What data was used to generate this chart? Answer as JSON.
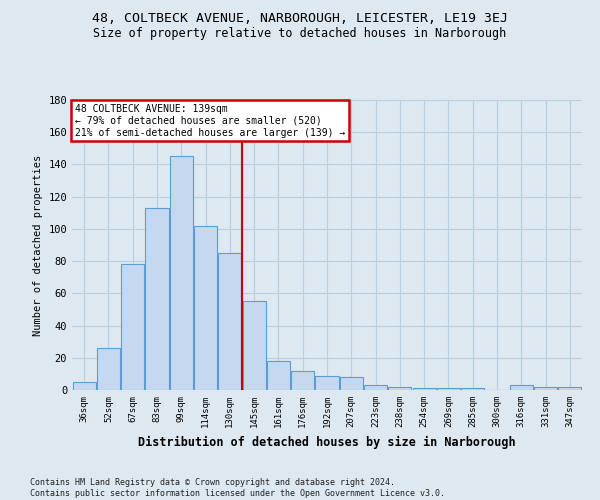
{
  "title_line1": "48, COLTBECK AVENUE, NARBOROUGH, LEICESTER, LE19 3EJ",
  "title_line2": "Size of property relative to detached houses in Narborough",
  "xlabel": "Distribution of detached houses by size in Narborough",
  "ylabel": "Number of detached properties",
  "categories": [
    "36sqm",
    "52sqm",
    "67sqm",
    "83sqm",
    "99sqm",
    "114sqm",
    "130sqm",
    "145sqm",
    "161sqm",
    "176sqm",
    "192sqm",
    "207sqm",
    "223sqm",
    "238sqm",
    "254sqm",
    "269sqm",
    "285sqm",
    "300sqm",
    "316sqm",
    "331sqm",
    "347sqm"
  ],
  "values": [
    5,
    26,
    78,
    113,
    145,
    102,
    85,
    55,
    18,
    12,
    9,
    8,
    3,
    2,
    1,
    1,
    1,
    0,
    3,
    2,
    2
  ],
  "bar_color": "#c5d8f0",
  "bar_edge_color": "#5a9fd4",
  "vline_color": "#cc0000",
  "annotation_title": "48 COLTBECK AVENUE: 139sqm",
  "annotation_line1": "← 79% of detached houses are smaller (520)",
  "annotation_line2": "21% of semi-detached houses are larger (139) →",
  "annotation_box_color": "#cc0000",
  "annotation_bg": "#ffffff",
  "ylim": [
    0,
    180
  ],
  "yticks": [
    0,
    20,
    40,
    60,
    80,
    100,
    120,
    140,
    160,
    180
  ],
  "grid_color": "#b8cfe0",
  "bg_color": "#dde8f0",
  "footer": "Contains HM Land Registry data © Crown copyright and database right 2024.\nContains public sector information licensed under the Open Government Licence v3.0."
}
